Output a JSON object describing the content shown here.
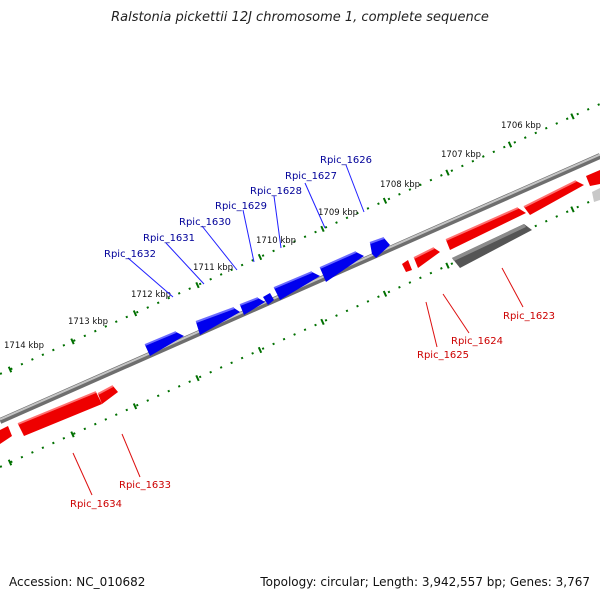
{
  "title": "Ralstonia pickettii 12J chromosome 1, complete sequence",
  "footer": {
    "accession": "Accession: NC_010682",
    "summary": "Topology: circular; Length: 3,942,557 bp; Genes: 3,767"
  },
  "colors": {
    "forward_gene": "#ff0000",
    "reverse_gene": "#0000ff",
    "highlight_gene": "#666666",
    "pseudo_gene": "#c8c8c8",
    "scale_ticks": "#007000",
    "backbone": "#8a8a8a",
    "forward_label": "#cc0000",
    "reverse_label": "#000099"
  },
  "scale_labels": [
    "1706 kbp",
    "1707 kbp",
    "1708 kbp",
    "1709 kbp",
    "1710 kbp",
    "1711 kbp",
    "1712 kbp",
    "1713 kbp",
    "1714 kbp"
  ],
  "gene_labels_reverse": [
    "Rpic_1626",
    "Rpic_1627",
    "Rpic_1628",
    "Rpic_1629",
    "Rpic_1630",
    "Rpic_1631",
    "Rpic_1632"
  ],
  "gene_labels_forward": [
    "Rpic_1623",
    "Rpic_1624",
    "Rpic_1625",
    "Rpic_1633",
    "Rpic_1634"
  ]
}
